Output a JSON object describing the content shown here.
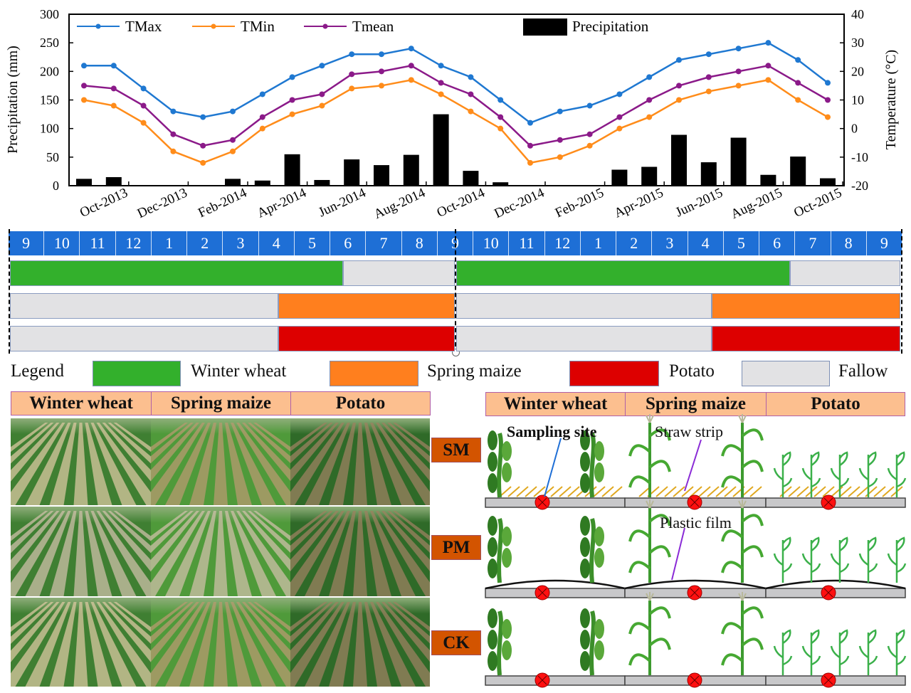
{
  "chart_data": {
    "type": "bar+line",
    "months": [
      "Sep-2013",
      "Oct-2013",
      "Nov-2013",
      "Dec-2013",
      "Jan-2014",
      "Feb-2014",
      "Mar-2014",
      "Apr-2014",
      "May-2014",
      "Jun-2014",
      "Jul-2014",
      "Aug-2014",
      "Sep-2014",
      "Oct-2014",
      "Nov-2014",
      "Dec-2014",
      "Jan-2015",
      "Feb-2015",
      "Mar-2015",
      "Apr-2015",
      "May-2015",
      "Jun-2015",
      "Jul-2015",
      "Aug-2015",
      "Sep-2015",
      "Oct-2015"
    ],
    "x_tick_labels": [
      "Oct-2013",
      "Dec-2013",
      "Feb-2014",
      "Apr-2014",
      "Jun-2014",
      "Aug-2014",
      "Oct-2014",
      "Dec-2014",
      "Feb-2015",
      "Apr-2015",
      "Jun-2015",
      "Aug-2015",
      "Oct-2015"
    ],
    "ylabel_left": "Precipitation (mm)",
    "ylabel_right": "Temperature (°C)",
    "ylim_left": [
      0,
      300
    ],
    "yticks_left": [
      "0",
      "50",
      "100",
      "150",
      "200",
      "250",
      "300"
    ],
    "ylim_right": [
      -20,
      40
    ],
    "yticks_right": [
      "-20",
      "-10",
      "0",
      "10",
      "20",
      "30",
      "40"
    ],
    "legend": {
      "tmax": "TMax",
      "tmin": "TMin",
      "tmean": "Tmean",
      "precip": "Precipitation"
    },
    "legend_placement": "top",
    "colors": {
      "tmax": "#1f78d1",
      "tmin": "#ff8c1a",
      "tmean": "#8b1a89",
      "precip": "#000000"
    },
    "series": [
      {
        "name": "Precipitation",
        "axis": "left",
        "type": "bar",
        "values": [
          12,
          15,
          0,
          0,
          0.5,
          12,
          9,
          55,
          10,
          46,
          36,
          54,
          125,
          26,
          6,
          0.5,
          0.5,
          0.5,
          28,
          33,
          89,
          41,
          84,
          19,
          51,
          13
        ]
      },
      {
        "name": "TMax",
        "axis": "right",
        "type": "line",
        "values": [
          22,
          22,
          14,
          6,
          4,
          6,
          12,
          18,
          22,
          26,
          26,
          28,
          22,
          18,
          10,
          2,
          6,
          8,
          12,
          18,
          24,
          26,
          28,
          30,
          24,
          16
        ]
      },
      {
        "name": "TMin",
        "axis": "right",
        "type": "line",
        "values": [
          10,
          8,
          2,
          -8,
          -12,
          -8,
          0,
          5,
          8,
          14,
          15,
          17,
          12,
          6,
          0,
          -12,
          -10,
          -6,
          0,
          4,
          10,
          13,
          15,
          17,
          10,
          4
        ]
      },
      {
        "name": "Tmean",
        "axis": "right",
        "type": "line",
        "values": [
          15,
          14,
          8,
          -2,
          -6,
          -4,
          4,
          10,
          12,
          19,
          20,
          22,
          16,
          12,
          4,
          -6,
          -4,
          -2,
          4,
          10,
          15,
          18,
          20,
          22,
          16,
          10
        ]
      }
    ]
  },
  "calendar": {
    "months": [
      "9",
      "10",
      "11",
      "12",
      "1",
      "2",
      "3",
      "4",
      "5",
      "6",
      "7",
      "8",
      "9",
      "10",
      "11",
      "12",
      "1",
      "2",
      "3",
      "4",
      "5",
      "6",
      "7",
      "8",
      "9"
    ],
    "colors": {
      "winter_wheat": "#33b02c",
      "spring_maize": "#ff7f1e",
      "potato": "#dd0000",
      "fallow": "#e2e2e4",
      "month_strip": "#1e6fd6"
    }
  },
  "legend": {
    "title": "Legend",
    "items": [
      "Winter wheat",
      "Spring maize",
      "Potato",
      "Fallow"
    ]
  },
  "photos": {
    "headers": [
      "Winter wheat",
      "Spring maize",
      "Potato"
    ]
  },
  "diagram": {
    "headers": [
      "Winter wheat",
      "Spring maize",
      "Potato"
    ],
    "treatments": [
      "SM",
      "PM",
      "CK"
    ],
    "annotations": {
      "sampling": "Sampling site",
      "straw": "Straw strip",
      "film": "Plastic film"
    }
  }
}
